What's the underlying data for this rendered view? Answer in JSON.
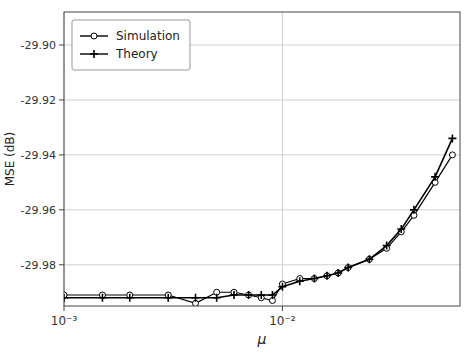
{
  "chart_data": {
    "type": "line",
    "xlabel": "μ",
    "ylabel": "MSE (dB)",
    "log": "x",
    "grid": true,
    "legend": "upper-left",
    "xlim": [
      0.001,
      0.065
    ],
    "ylim": [
      -29.995,
      -29.888
    ],
    "xticks": [
      {
        "value": 0.001,
        "label": "10⁻³"
      },
      {
        "value": 0.01,
        "label": "10⁻²"
      }
    ],
    "yticks": [
      -29.98,
      -29.96,
      -29.94,
      -29.92,
      {
        "value": -29.9,
        "label": "-29.90"
      }
    ],
    "x": [
      0.001,
      0.0015,
      0.002,
      0.003,
      0.004,
      0.005,
      0.006,
      0.007,
      0.008,
      0.009,
      0.01,
      0.012,
      0.014,
      0.016,
      0.018,
      0.02,
      0.025,
      0.03,
      0.035,
      0.04,
      0.05,
      0.06
    ],
    "series": [
      {
        "name": "Simulation",
        "color": "#000000",
        "marker": "circle",
        "values": [
          -29.991,
          -29.991,
          -29.991,
          -29.991,
          -29.994,
          -29.99,
          -29.99,
          -29.991,
          -29.992,
          -29.993,
          -29.987,
          -29.985,
          -29.985,
          -29.984,
          -29.983,
          -29.981,
          -29.978,
          -29.974,
          -29.968,
          -29.962,
          -29.95,
          -29.94
        ]
      },
      {
        "name": "Theory",
        "color": "#000000",
        "marker": "plus",
        "values": [
          -29.992,
          -29.992,
          -29.992,
          -29.992,
          -29.992,
          -29.992,
          -29.991,
          -29.991,
          -29.991,
          -29.991,
          -29.988,
          -29.986,
          -29.985,
          -29.984,
          -29.983,
          -29.981,
          -29.978,
          -29.973,
          -29.967,
          -29.96,
          -29.948,
          -29.934
        ]
      }
    ]
  }
}
